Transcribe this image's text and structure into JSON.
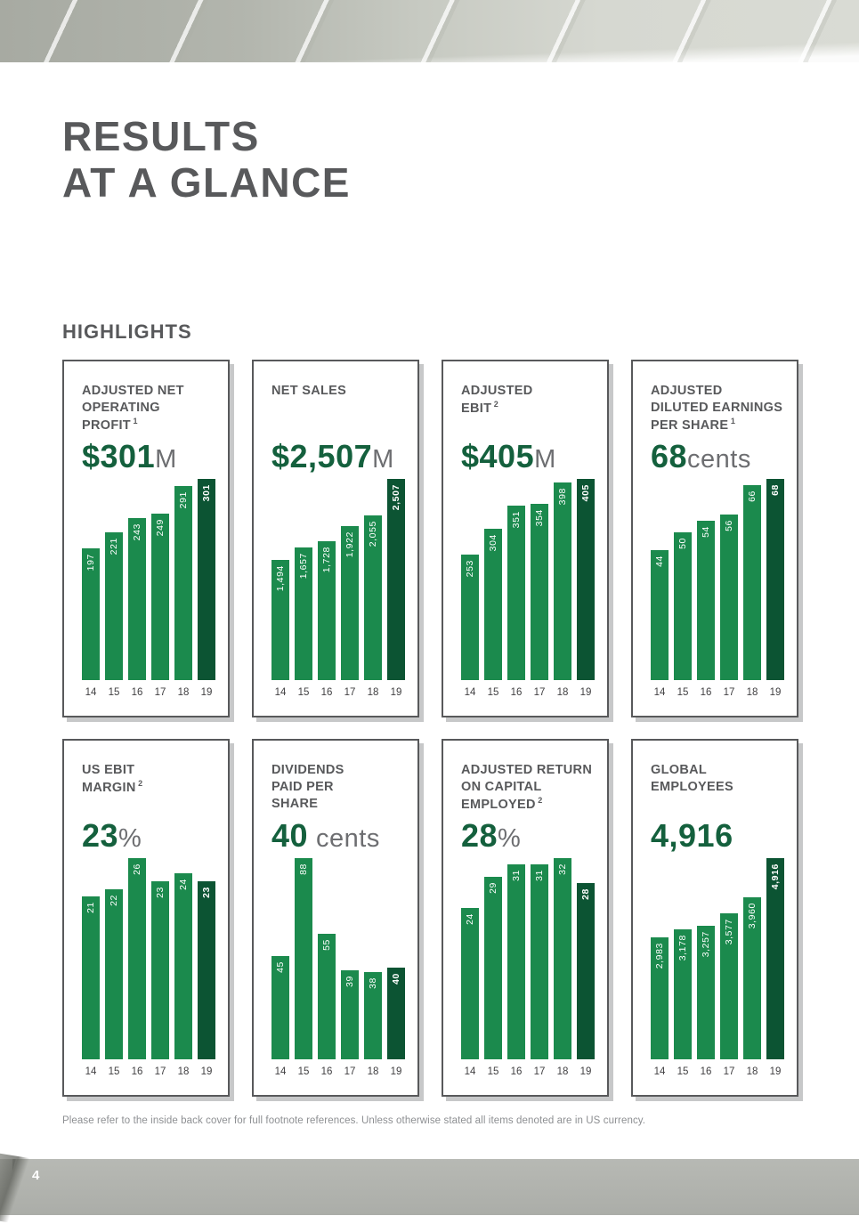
{
  "page": {
    "title_line1": "RESULTS",
    "title_line2": "AT A GLANCE",
    "section_heading": "HIGHLIGHTS",
    "footer_note": "Please refer to the inside back cover for full footnote references. Unless otherwise stated all items denoted are in US currency.",
    "page_number": "4"
  },
  "colors": {
    "headline_green": "#14603d",
    "bar_green": "#1b8a4d",
    "bar_dark_green": "#0c5433",
    "heading_gray": "#58595b",
    "suffix_gray": "#6d6e71"
  },
  "cards": [
    {
      "heading_lines": [
        "ADJUSTED NET",
        "OPERATING",
        "PROFIT"
      ],
      "footnote_ref": "1",
      "value_prefix": "$",
      "value": "301",
      "value_suffix": "M",
      "suffix_space": false
    },
    {
      "heading_lines": [
        "NET SALES"
      ],
      "footnote_ref": "",
      "value_prefix": "$",
      "value": "2,507",
      "value_suffix": "M",
      "suffix_space": false
    },
    {
      "heading_lines": [
        "ADJUSTED",
        "EBIT"
      ],
      "footnote_ref": "2",
      "value_prefix": "$",
      "value": "405",
      "value_suffix": "M",
      "suffix_space": false
    },
    {
      "heading_lines": [
        "ADJUSTED",
        "DILUTED EARNINGS",
        "PER SHARE"
      ],
      "footnote_ref": "1",
      "value_prefix": "",
      "value": "68",
      "value_suffix": "cents",
      "suffix_space": false
    },
    {
      "heading_lines": [
        "US EBIT",
        "MARGIN"
      ],
      "footnote_ref": "2",
      "value_prefix": "",
      "value": "23",
      "value_suffix": "%",
      "suffix_space": false
    },
    {
      "heading_lines": [
        "DIVIDENDS",
        "PAID PER",
        "SHARE"
      ],
      "footnote_ref": "",
      "value_prefix": "",
      "value": "40",
      "value_suffix": "cents",
      "suffix_space": true
    },
    {
      "heading_lines": [
        "ADJUSTED RETURN",
        "ON CAPITAL",
        "EMPLOYED"
      ],
      "footnote_ref": "2",
      "value_prefix": "",
      "value": "28",
      "value_suffix": "%",
      "suffix_space": false
    },
    {
      "heading_lines": [
        "GLOBAL",
        "EMPLOYEES"
      ],
      "footnote_ref": "",
      "value_prefix": "",
      "value": "4,916",
      "value_suffix": "",
      "suffix_space": false
    }
  ],
  "chart_data": [
    {
      "type": "bar",
      "title": "ADJUSTED NET OPERATING PROFIT ($M)",
      "categories": [
        "14",
        "15",
        "16",
        "17",
        "18",
        "19"
      ],
      "values": [
        197,
        221,
        243,
        249,
        291,
        301
      ],
      "bar_labels": [
        "197",
        "221",
        "243",
        "249",
        "291",
        "301"
      ],
      "highlight_last_bar": true,
      "ylim": [
        0,
        301
      ]
    },
    {
      "type": "bar",
      "title": "NET SALES ($M)",
      "categories": [
        "14",
        "15",
        "16",
        "17",
        "18",
        "19"
      ],
      "values": [
        1494,
        1657,
        1728,
        1922,
        2055,
        2507
      ],
      "bar_labels": [
        "1,494",
        "1,657",
        "1,728",
        "1,922",
        "2,055",
        "2,507"
      ],
      "highlight_last_bar": true,
      "ylim": [
        0,
        2507
      ]
    },
    {
      "type": "bar",
      "title": "ADJUSTED EBIT ($M)",
      "categories": [
        "14",
        "15",
        "16",
        "17",
        "18",
        "19"
      ],
      "values": [
        253,
        304,
        351,
        354,
        398,
        405
      ],
      "bar_labels": [
        "253",
        "304",
        "351",
        "354",
        "398",
        "405"
      ],
      "highlight_last_bar": true,
      "ylim": [
        0,
        405
      ]
    },
    {
      "type": "bar",
      "title": "ADJUSTED DILUTED EARNINGS PER SHARE (cents)",
      "categories": [
        "14",
        "15",
        "16",
        "17",
        "18",
        "19"
      ],
      "values": [
        44,
        50,
        54,
        56,
        66,
        68
      ],
      "bar_labels": [
        "44",
        "50",
        "54",
        "56",
        "66",
        "68"
      ],
      "highlight_last_bar": true,
      "ylim": [
        0,
        68
      ]
    },
    {
      "type": "bar",
      "title": "US EBIT MARGIN (%)",
      "categories": [
        "14",
        "15",
        "16",
        "17",
        "18",
        "19"
      ],
      "values": [
        21,
        22,
        26,
        23,
        24,
        23
      ],
      "bar_labels": [
        "21",
        "22",
        "26",
        "23",
        "24",
        "23"
      ],
      "highlight_last_bar": true,
      "ylim": [
        0,
        26
      ]
    },
    {
      "type": "bar",
      "title": "DIVIDENDS PAID PER SHARE (cents)",
      "categories": [
        "14",
        "15",
        "16",
        "17",
        "18",
        "19"
      ],
      "values": [
        45,
        88,
        55,
        39,
        38,
        40
      ],
      "bar_labels": [
        "45",
        "88",
        "55",
        "39",
        "38",
        "40"
      ],
      "highlight_last_bar": true,
      "ylim": [
        0,
        88
      ]
    },
    {
      "type": "bar",
      "title": "ADJUSTED RETURN ON CAPITAL EMPLOYED (%)",
      "categories": [
        "14",
        "15",
        "16",
        "17",
        "18",
        "19"
      ],
      "values": [
        24,
        29,
        31,
        31,
        32,
        28
      ],
      "bar_labels": [
        "24",
        "29",
        "31",
        "31",
        "32",
        "28"
      ],
      "highlight_last_bar": true,
      "ylim": [
        0,
        32
      ]
    },
    {
      "type": "bar",
      "title": "GLOBAL EMPLOYEES",
      "categories": [
        "14",
        "15",
        "16",
        "17",
        "18",
        "19"
      ],
      "values": [
        2983,
        3178,
        3257,
        3577,
        3960,
        4916
      ],
      "bar_labels": [
        "2,983",
        "3,178",
        "3,257",
        "3,577",
        "3,960",
        "4,916"
      ],
      "highlight_last_bar": true,
      "ylim": [
        0,
        4916
      ]
    }
  ]
}
